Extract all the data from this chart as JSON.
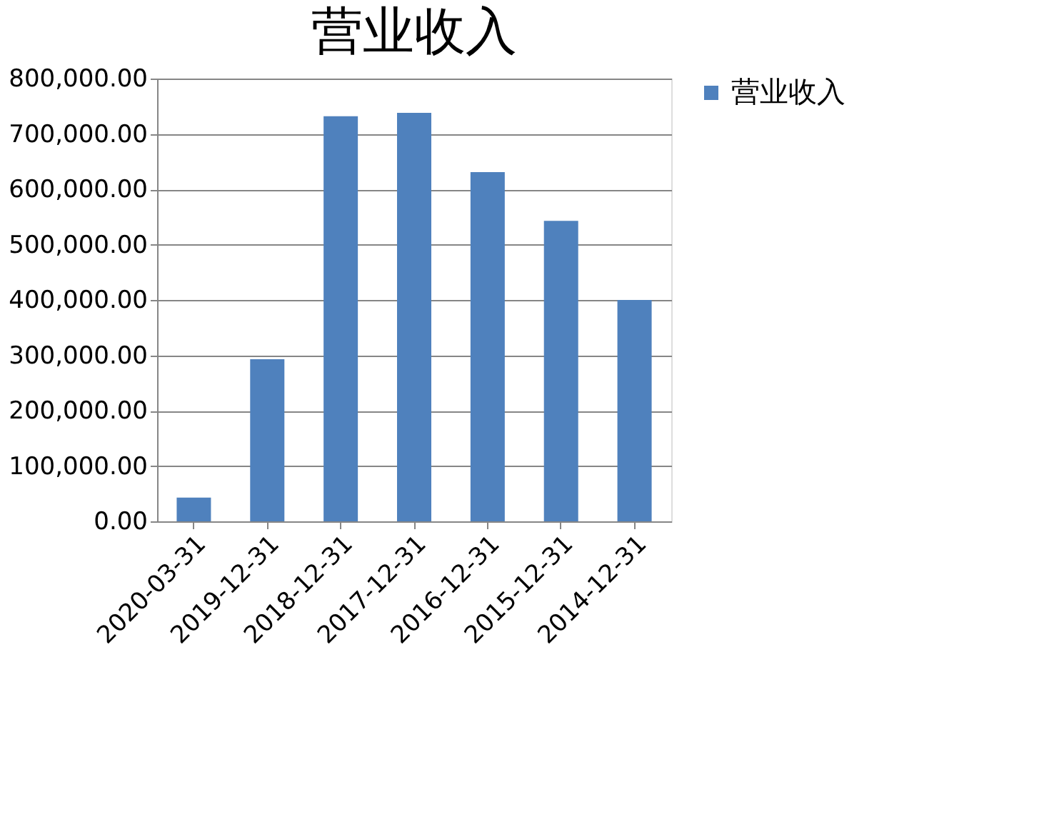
{
  "chart_data": {
    "type": "bar",
    "title": "营业收入",
    "categories": [
      "2020-03-31",
      "2019-12-31",
      "2018-12-31",
      "2017-12-31",
      "2016-12-31",
      "2015-12-31",
      "2014-12-31"
    ],
    "series": [
      {
        "name": "营业收入",
        "color": "#4f81bd",
        "values": [
          43000,
          293000,
          732000,
          738000,
          631000,
          543000,
          400000
        ]
      }
    ],
    "ylim": [
      0,
      800000
    ],
    "yticks": [
      {
        "value": 0,
        "label": "0.00"
      },
      {
        "value": 100000,
        "label": "100,000.00"
      },
      {
        "value": 200000,
        "label": "200,000.00"
      },
      {
        "value": 300000,
        "label": "300,000.00"
      },
      {
        "value": 400000,
        "label": "400,000.00"
      },
      {
        "value": 500000,
        "label": "500,000.00"
      },
      {
        "value": 600000,
        "label": "600,000.00"
      },
      {
        "value": 700000,
        "label": "700,000.00"
      },
      {
        "value": 800000,
        "label": "800,000.00"
      }
    ],
    "grid": "y",
    "legend": "right"
  }
}
